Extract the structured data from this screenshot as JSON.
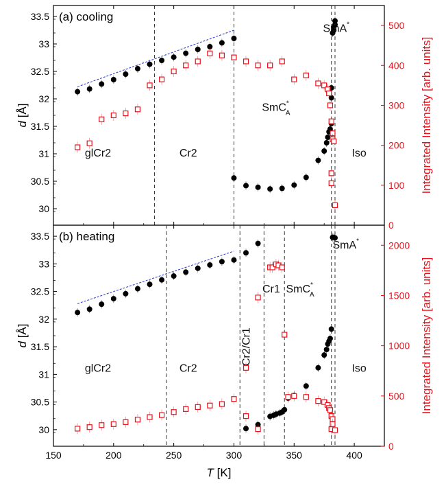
{
  "colors": {
    "d": "#000000",
    "intensity": "#e8101a",
    "fit": "#3344cc"
  },
  "chart_data": [
    {
      "type": "scatter",
      "panel_label": "(a) cooling",
      "xlim": [
        150,
        425
      ],
      "ylim": [
        29.7,
        33.7
      ],
      "y2lim": [
        0,
        550
      ],
      "ylabel_var": "d",
      "ylabel_unit": " [Å]",
      "y2label": "Integrated Intensity [arb. units]",
      "xticks": [
        150,
        200,
        250,
        300,
        350,
        400
      ],
      "yticks": [
        30,
        30.5,
        31,
        31.5,
        32,
        32.5,
        33,
        33.5
      ],
      "y2ticks": [
        0,
        100,
        200,
        300,
        400,
        500
      ],
      "grid": false,
      "boundaries": [
        234,
        300,
        381,
        384
      ],
      "phases": [
        {
          "text": "glCr2",
          "x": 187,
          "y": 30.95
        },
        {
          "text": "Cr2",
          "x": 262,
          "y": 30.95
        },
        {
          "text": "SmC",
          "sup": "*",
          "sub": "A",
          "x": 335,
          "y": 31.78
        },
        {
          "text": "SmA",
          "sup": "*",
          "x": 385,
          "y": 33.22
        },
        {
          "text": "Iso",
          "x": 404,
          "y": 30.95
        }
      ],
      "series": [
        {
          "axis": "left",
          "marker": "filled-circle",
          "points": [
            [
              170,
              32.13
            ],
            [
              180,
              32.18
            ],
            [
              190,
              32.27
            ],
            [
              200,
              32.35
            ],
            [
              210,
              32.45
            ],
            [
              220,
              32.55
            ],
            [
              230,
              32.63
            ],
            [
              240,
              32.7
            ],
            [
              250,
              32.76
            ],
            [
              260,
              32.83
            ],
            [
              270,
              32.9
            ],
            [
              280,
              32.95
            ],
            [
              290,
              33.02
            ],
            [
              300,
              33.1
            ],
            [
              300,
              30.56
            ],
            [
              310,
              30.42
            ],
            [
              320,
              30.39
            ],
            [
              330,
              30.36
            ],
            [
              340,
              30.37
            ],
            [
              350,
              30.43
            ],
            [
              360,
              30.57
            ],
            [
              370,
              30.88
            ],
            [
              375,
              31.05
            ],
            [
              377,
              31.2
            ],
            [
              378,
              31.3
            ],
            [
              379,
              31.4
            ],
            [
              380,
              31.45
            ],
            [
              381,
              31.55
            ],
            [
              381,
              32.02
            ],
            [
              381,
              32.2
            ],
            [
              382,
              33.2
            ],
            [
              383,
              33.25
            ],
            [
              383,
              33.3
            ],
            [
              384,
              33.35
            ],
            [
              384,
              33.42
            ]
          ]
        },
        {
          "axis": "right",
          "marker": "open-square",
          "points": [
            [
              170,
              195
            ],
            [
              180,
              205
            ],
            [
              190,
              265
            ],
            [
              200,
              275
            ],
            [
              210,
              280
            ],
            [
              220,
              290
            ],
            [
              230,
              350
            ],
            [
              240,
              365
            ],
            [
              250,
              385
            ],
            [
              260,
              400
            ],
            [
              270,
              410
            ],
            [
              280,
              430
            ],
            [
              290,
              425
            ],
            [
              300,
              420
            ],
            [
              310,
              410
            ],
            [
              320,
              400
            ],
            [
              330,
              400
            ],
            [
              340,
              410
            ],
            [
              350,
              365
            ],
            [
              360,
              375
            ],
            [
              370,
              355
            ],
            [
              375,
              350
            ],
            [
              378,
              340
            ],
            [
              379,
              330
            ],
            [
              380,
              300
            ],
            [
              381,
              260
            ],
            [
              382,
              230
            ],
            [
              382,
              215
            ],
            [
              383,
              210
            ],
            [
              381,
              130
            ],
            [
              381,
              105
            ],
            [
              384,
              50
            ]
          ]
        }
      ],
      "fit_line": {
        "x1": 170,
        "y1": 32.22,
        "x2": 300,
        "y2": 33.25
      }
    },
    {
      "type": "scatter",
      "panel_label": "(b) heating",
      "xlim": [
        150,
        425
      ],
      "ylim": [
        29.7,
        33.7
      ],
      "y2lim": [
        0,
        2200
      ],
      "ylabel_var": "d",
      "ylabel_unit": " [Å]",
      "y2label": "Integrated Intensity [arb. units]",
      "xlabel_var": "T",
      "xlabel_unit": " [K]",
      "xticks": [
        150,
        200,
        250,
        300,
        350,
        400
      ],
      "xticklabels": [
        "150",
        "200",
        "250",
        "300",
        "350",
        "400"
      ],
      "yticks": [
        30,
        30.5,
        31,
        31.5,
        32,
        32.5,
        33,
        33.5
      ],
      "y2ticks": [
        0,
        500,
        1000,
        1500,
        2000
      ],
      "grid": false,
      "boundaries": [
        244,
        305,
        325,
        342,
        381,
        384
      ],
      "phases": [
        {
          "text": "glCr2",
          "x": 187,
          "y": 31.05
        },
        {
          "text": "Cr2",
          "x": 262,
          "y": 31.05
        },
        {
          "text": "Cr2/Cr1",
          "x": 313,
          "y": 31.5,
          "rotate": -90
        },
        {
          "text": "Cr1",
          "x": 331,
          "y": 32.48
        },
        {
          "text": "SmC",
          "sup": "*",
          "sub": "A",
          "x": 355,
          "y": 32.48
        },
        {
          "text": "SmA",
          "sup": "*",
          "x": 393,
          "y": 33.28
        },
        {
          "text": "Iso",
          "x": 404,
          "y": 31.05
        }
      ],
      "series": [
        {
          "axis": "left",
          "marker": "filled-circle",
          "points": [
            [
              170,
              32.12
            ],
            [
              180,
              32.18
            ],
            [
              190,
              32.27
            ],
            [
              200,
              32.37
            ],
            [
              210,
              32.46
            ],
            [
              220,
              32.55
            ],
            [
              230,
              32.63
            ],
            [
              240,
              32.71
            ],
            [
              250,
              32.78
            ],
            [
              260,
              32.85
            ],
            [
              270,
              32.92
            ],
            [
              280,
              32.98
            ],
            [
              290,
              33.04
            ],
            [
              300,
              33.07
            ],
            [
              310,
              33.2
            ],
            [
              320,
              33.37
            ],
            [
              310,
              30.02
            ],
            [
              320,
              30.09
            ],
            [
              330,
              30.24
            ],
            [
              333,
              30.26
            ],
            [
              335,
              30.28
            ],
            [
              338,
              30.3
            ],
            [
              340,
              30.32
            ],
            [
              342,
              30.36
            ],
            [
              345,
              30.57
            ],
            [
              350,
              30.62
            ],
            [
              360,
              30.79
            ],
            [
              370,
              31.12
            ],
            [
              375,
              31.35
            ],
            [
              377,
              31.45
            ],
            [
              378,
              31.55
            ],
            [
              379,
              31.6
            ],
            [
              380,
              31.65
            ],
            [
              381,
              31.82
            ],
            [
              382,
              33.48
            ],
            [
              383,
              33.48
            ],
            [
              384,
              33.47
            ]
          ]
        },
        {
          "axis": "right",
          "marker": "open-square",
          "points": [
            [
              170,
              175
            ],
            [
              180,
              190
            ],
            [
              190,
              210
            ],
            [
              200,
              220
            ],
            [
              210,
              240
            ],
            [
              220,
              265
            ],
            [
              230,
              290
            ],
            [
              240,
              310
            ],
            [
              250,
              340
            ],
            [
              260,
              370
            ],
            [
              270,
              390
            ],
            [
              280,
              405
            ],
            [
              290,
              420
            ],
            [
              300,
              470
            ],
            [
              310,
              780
            ],
            [
              310,
              300
            ],
            [
              320,
              170
            ],
            [
              320,
              1480
            ],
            [
              330,
              1780
            ],
            [
              332,
              1780
            ],
            [
              335,
              1810
            ],
            [
              337,
              1800
            ],
            [
              340,
              1780
            ],
            [
              342,
              1110
            ],
            [
              345,
              490
            ],
            [
              350,
              500
            ],
            [
              360,
              490
            ],
            [
              370,
              450
            ],
            [
              375,
              440
            ],
            [
              378,
              410
            ],
            [
              379,
              380
            ],
            [
              380,
              360
            ],
            [
              381,
              300
            ],
            [
              382,
              270
            ],
            [
              382,
              220
            ],
            [
              381,
              170
            ],
            [
              384,
              160
            ]
          ]
        }
      ],
      "fit_line": {
        "x1": 170,
        "y1": 32.28,
        "x2": 300,
        "y2": 33.23
      }
    }
  ]
}
